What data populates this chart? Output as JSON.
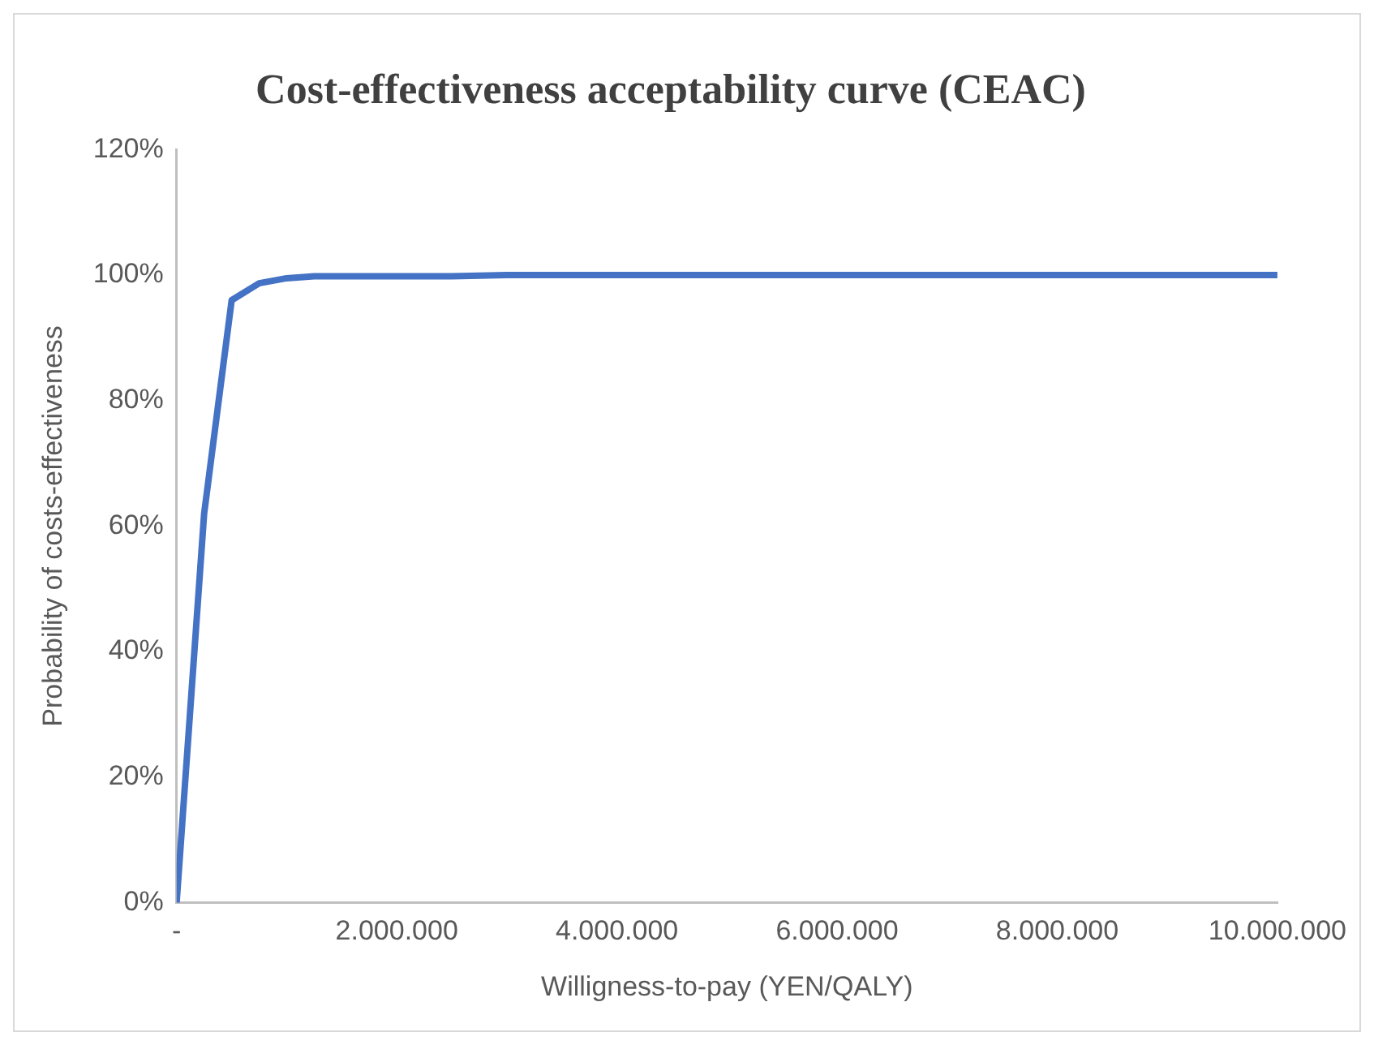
{
  "chart_data": {
    "type": "line",
    "title": "Cost-effectiveness acceptability curve (CEAC)",
    "xlabel": "Willigness-to-pay (YEN/QALY)",
    "ylabel": "Probability of costs-effectiveness",
    "x": [
      0,
      250000,
      500000,
      750000,
      1000000,
      1250000,
      2500000,
      3000000,
      10000000
    ],
    "series": [
      {
        "color": "#4472c4",
        "values": [
          0,
          62,
          96,
          98.7,
          99.5,
          99.8,
          99.8,
          100,
          100
        ]
      }
    ],
    "xlim": [
      0,
      10000000
    ],
    "xticks": [
      {
        "value": 0,
        "label": "-"
      },
      {
        "value": 2000000,
        "label": "2.000.000"
      },
      {
        "value": 4000000,
        "label": "4.000.000"
      },
      {
        "value": 6000000,
        "label": "6.000.000"
      },
      {
        "value": 8000000,
        "label": "8.000.000"
      },
      {
        "value": 10000000,
        "label": "10.000.000"
      }
    ],
    "ylim": [
      0,
      120
    ],
    "yticks": [
      {
        "value": 0,
        "label": "0%"
      },
      {
        "value": 20,
        "label": "20%"
      },
      {
        "value": 40,
        "label": "40%"
      },
      {
        "value": 60,
        "label": "60%"
      },
      {
        "value": 80,
        "label": "80%"
      },
      {
        "value": 100,
        "label": "100%"
      },
      {
        "value": 120,
        "label": "120%"
      }
    ],
    "grid": false,
    "legend": false,
    "marker": "none",
    "line_style": "solid"
  }
}
